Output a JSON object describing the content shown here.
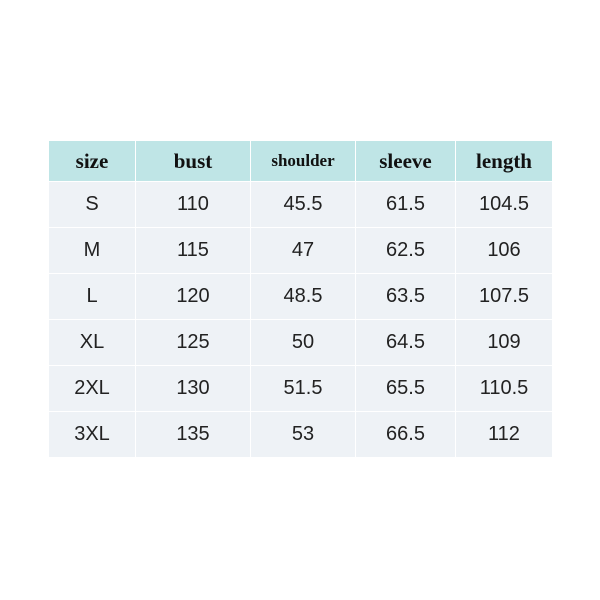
{
  "table": {
    "header": [
      "size",
      "bust",
      "shoulder",
      "sleeve",
      "length"
    ],
    "rows": [
      [
        "S",
        "110",
        "45.5",
        "61.5",
        "104.5"
      ],
      [
        "M",
        "115",
        "47",
        "62.5",
        "106"
      ],
      [
        "L",
        "120",
        "48.5",
        "63.5",
        "107.5"
      ],
      [
        "XL",
        "125",
        "50",
        "64.5",
        "109"
      ],
      [
        "2XL",
        "130",
        "51.5",
        "65.5",
        "110.5"
      ],
      [
        "3XL",
        "135",
        "53",
        "66.5",
        "112"
      ]
    ]
  }
}
